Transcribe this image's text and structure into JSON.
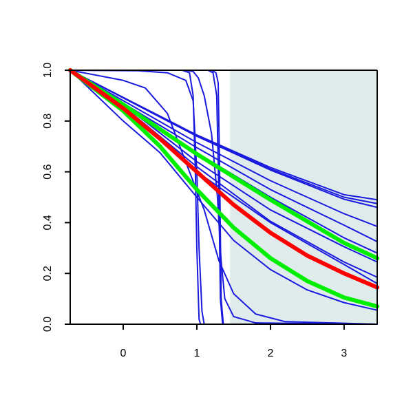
{
  "chart_data": {
    "type": "line",
    "title": "",
    "xlabel": "",
    "ylabel": "",
    "xlim": [
      -0.72,
      3.45
    ],
    "ylim": [
      0.0,
      1.0
    ],
    "grid": false,
    "legend": "none",
    "x_ticks": [
      0,
      1,
      2,
      3
    ],
    "x_tick_labels": [
      "0",
      "1",
      "2",
      "3"
    ],
    "y_ticks": [
      0.0,
      0.2,
      0.4,
      0.6,
      0.8,
      1.0
    ],
    "y_tick_labels": [
      "0.0",
      "0.2",
      "0.4",
      "0.6",
      "0.8",
      "1.0"
    ],
    "shaded_region": {
      "x_from": 1.45,
      "x_to": 3.45,
      "y_from": 0.0,
      "y_to": 1.0,
      "color": "#e0ecec"
    },
    "colors": {
      "blue": "#1a1adf",
      "red": "#ff0000",
      "green": "#00ee00",
      "axis": "#000000"
    },
    "series": [
      {
        "color": "#1a1adf",
        "style": "thin",
        "points": [
          [
            -0.72,
            1.0
          ],
          [
            0.0,
            0.893
          ],
          [
            1.0,
            0.745
          ],
          [
            2.0,
            0.617
          ],
          [
            3.0,
            0.51
          ],
          [
            3.45,
            0.49
          ]
        ]
      },
      {
        "color": "#1a1adf",
        "style": "thin",
        "points": [
          [
            -0.72,
            1.0
          ],
          [
            0.0,
            0.892
          ],
          [
            1.0,
            0.742
          ],
          [
            2.0,
            0.611
          ],
          [
            3.0,
            0.5
          ],
          [
            3.45,
            0.475
          ]
        ]
      },
      {
        "color": "#1a1adf",
        "style": "thin",
        "points": [
          [
            -0.72,
            1.0
          ],
          [
            0.0,
            0.891
          ],
          [
            1.0,
            0.74
          ],
          [
            2.0,
            0.607
          ],
          [
            3.0,
            0.492
          ],
          [
            3.45,
            0.46
          ]
        ]
      },
      {
        "color": "#1a1adf",
        "style": "thin",
        "points": [
          [
            -0.72,
            1.0
          ],
          [
            0.0,
            0.88
          ],
          [
            1.0,
            0.715
          ],
          [
            2.0,
            0.565
          ],
          [
            3.0,
            0.435
          ],
          [
            3.45,
            0.385
          ]
        ]
      },
      {
        "color": "#1a1adf",
        "style": "thin",
        "points": [
          [
            -0.72,
            1.0
          ],
          [
            0.0,
            0.87
          ],
          [
            1.0,
            0.695
          ],
          [
            2.0,
            0.53
          ],
          [
            3.0,
            0.39
          ],
          [
            3.45,
            0.325
          ]
        ]
      },
      {
        "color": "#1a1adf",
        "style": "thin",
        "points": [
          [
            -0.72,
            1.0
          ],
          [
            0.0,
            0.86
          ],
          [
            1.0,
            0.675
          ],
          [
            2.0,
            0.5
          ],
          [
            3.0,
            0.34
          ],
          [
            3.45,
            0.28
          ]
        ]
      },
      {
        "color": "#1a1adf",
        "style": "thin",
        "points": [
          [
            -0.72,
            1.0
          ],
          [
            0.0,
            0.865
          ],
          [
            1.0,
            0.64
          ],
          [
            2.0,
            0.45
          ],
          [
            3.0,
            0.305
          ],
          [
            3.45,
            0.245
          ]
        ]
      },
      {
        "color": "#1a1adf",
        "style": "thin",
        "points": [
          [
            -0.72,
            1.0
          ],
          [
            0.0,
            0.858
          ],
          [
            1.0,
            0.62
          ],
          [
            2.0,
            0.405
          ],
          [
            3.0,
            0.245
          ],
          [
            3.45,
            0.185
          ]
        ]
      },
      {
        "color": "#1a1adf",
        "style": "thin",
        "points": [
          [
            -0.72,
            1.0
          ],
          [
            0.0,
            0.855
          ],
          [
            1.0,
            0.6
          ],
          [
            2.0,
            0.4
          ],
          [
            3.0,
            0.235
          ],
          [
            3.45,
            0.16
          ]
        ]
      },
      {
        "color": "#1a1adf",
        "style": "thin",
        "points": [
          [
            -0.72,
            1.0
          ],
          [
            0.0,
            0.8
          ],
          [
            0.5,
            0.675
          ],
          [
            1.0,
            0.5
          ],
          [
            1.5,
            0.33
          ],
          [
            2.0,
            0.215
          ],
          [
            2.5,
            0.135
          ],
          [
            3.0,
            0.085
          ],
          [
            3.45,
            0.055
          ]
        ]
      },
      {
        "color": "#1a1adf",
        "style": "thin",
        "points": [
          [
            -0.72,
            1.0
          ],
          [
            0.0,
            0.96
          ],
          [
            0.3,
            0.93
          ],
          [
            0.6,
            0.83
          ],
          [
            0.9,
            0.6
          ],
          [
            1.1,
            0.45
          ],
          [
            1.3,
            0.25
          ],
          [
            1.5,
            0.12
          ],
          [
            1.8,
            0.04
          ],
          [
            2.2,
            0.01
          ],
          [
            3.45,
            0.0
          ]
        ]
      },
      {
        "color": "#1a1adf",
        "style": "thin",
        "points": [
          [
            -0.72,
            1.0
          ],
          [
            0.2,
            0.998
          ],
          [
            0.6,
            0.99
          ],
          [
            0.85,
            0.96
          ],
          [
            0.95,
            0.88
          ],
          [
            1.0,
            0.6
          ],
          [
            1.03,
            0.3
          ],
          [
            1.07,
            0.05
          ],
          [
            1.1,
            0.0
          ],
          [
            3.45,
            0.0
          ]
        ]
      },
      {
        "color": "#1a1adf",
        "style": "thin",
        "points": [
          [
            -0.72,
            1.0
          ],
          [
            0.8,
            1.0
          ],
          [
            0.9,
            0.99
          ],
          [
            0.95,
            0.9
          ],
          [
            0.98,
            0.6
          ],
          [
            1.0,
            0.3
          ],
          [
            1.03,
            0.02
          ],
          [
            1.05,
            0.0
          ],
          [
            3.45,
            0.0
          ]
        ]
      },
      {
        "color": "#1a1adf",
        "style": "thin",
        "points": [
          [
            -0.72,
            1.0
          ],
          [
            0.85,
            1.0
          ],
          [
            0.95,
            0.995
          ],
          [
            1.02,
            0.97
          ],
          [
            1.1,
            0.9
          ],
          [
            1.2,
            0.75
          ],
          [
            1.28,
            0.5
          ],
          [
            1.33,
            0.25
          ],
          [
            1.38,
            0.1
          ],
          [
            1.5,
            0.03
          ],
          [
            1.8,
            0.005
          ],
          [
            3.45,
            0.0
          ]
        ]
      },
      {
        "color": "#1a1adf",
        "style": "thin",
        "points": [
          [
            -0.72,
            1.0
          ],
          [
            1.15,
            1.0
          ],
          [
            1.22,
            0.99
          ],
          [
            1.27,
            0.9
          ],
          [
            1.3,
            0.5
          ],
          [
            1.32,
            0.1
          ],
          [
            1.35,
            0.0
          ],
          [
            3.45,
            0.0
          ]
        ]
      },
      {
        "color": "#1a1adf",
        "style": "thin",
        "points": [
          [
            -0.72,
            1.0
          ],
          [
            1.2,
            1.0
          ],
          [
            1.26,
            0.99
          ],
          [
            1.29,
            0.95
          ],
          [
            1.31,
            0.6
          ],
          [
            1.33,
            0.1
          ],
          [
            1.36,
            0.0
          ],
          [
            3.45,
            0.0
          ]
        ]
      },
      {
        "color": "#00ee00",
        "style": "thick",
        "points": [
          [
            -0.72,
            1.0
          ],
          [
            0.0,
            0.865
          ],
          [
            1.0,
            0.67
          ],
          [
            2.0,
            0.49
          ],
          [
            3.0,
            0.32
          ],
          [
            3.45,
            0.26
          ]
        ]
      },
      {
        "color": "#00ee00",
        "style": "thick",
        "points": [
          [
            -0.72,
            1.0
          ],
          [
            0.0,
            0.84
          ],
          [
            0.5,
            0.7
          ],
          [
            1.0,
            0.53
          ],
          [
            1.5,
            0.38
          ],
          [
            2.0,
            0.26
          ],
          [
            2.5,
            0.17
          ],
          [
            3.0,
            0.105
          ],
          [
            3.45,
            0.07
          ]
        ]
      },
      {
        "color": "#ff0000",
        "style": "thick",
        "points": [
          [
            -0.72,
            1.0
          ],
          [
            0.0,
            0.85
          ],
          [
            0.5,
            0.73
          ],
          [
            1.0,
            0.6
          ],
          [
            1.5,
            0.47
          ],
          [
            2.0,
            0.36
          ],
          [
            2.5,
            0.27
          ],
          [
            3.0,
            0.2
          ],
          [
            3.45,
            0.145
          ]
        ]
      }
    ]
  }
}
